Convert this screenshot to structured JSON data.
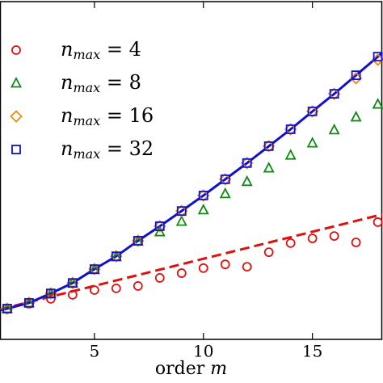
{
  "chart_data": {
    "type": "scatter",
    "x_label": "order m",
    "xlim": [
      0.67,
      18.2
    ],
    "ylim": [
      0,
      100
    ],
    "xticks": [
      5,
      10,
      15
    ],
    "series": [
      {
        "name": "nmax = 4",
        "color": "#dd1111",
        "marker": "circle",
        "x": [
          1,
          2,
          3,
          4,
          5,
          6,
          7,
          8,
          9,
          10,
          11,
          12,
          13,
          14,
          15,
          16,
          17,
          18
        ],
        "values": [
          9.1,
          10.5,
          12.0,
          13.2,
          14.6,
          15.1,
          15.8,
          18.2,
          19.6,
          21.1,
          22.2,
          21.5,
          25.8,
          28.5,
          29.9,
          30.6,
          28.7,
          34.7
        ]
      },
      {
        "name": "nmax = 8",
        "color": "#118811",
        "marker": "triangle",
        "x": [
          1,
          2,
          3,
          4,
          5,
          6,
          7,
          8,
          9,
          10,
          11,
          12,
          13,
          14,
          15,
          16,
          17,
          18
        ],
        "values": [
          9.1,
          10.8,
          13.4,
          16.7,
          20.6,
          24.4,
          29.0,
          31.8,
          34.9,
          38.3,
          43.1,
          46.7,
          50.7,
          54.5,
          58.1,
          62.0,
          65.8,
          69.6
        ]
      },
      {
        "name": "nmax = 16",
        "color": "#ee8811",
        "marker": "diamond",
        "x": [
          1,
          2,
          3,
          4,
          5,
          6,
          7,
          8,
          9,
          10,
          11,
          12,
          13,
          14,
          15,
          16,
          17,
          18
        ],
        "values": [
          9.1,
          10.8,
          13.6,
          16.7,
          20.8,
          24.6,
          29.2,
          33.5,
          38.0,
          42.6,
          47.4,
          52.2,
          57.2,
          62.2,
          67.5,
          72.7,
          77.3,
          82.8
        ]
      },
      {
        "name": "nmax = 32",
        "color": "#1111cc",
        "marker": "square",
        "x": [
          1,
          2,
          3,
          4,
          5,
          6,
          7,
          8,
          9,
          10,
          11,
          12,
          13,
          14,
          15,
          16,
          17,
          18
        ],
        "values": [
          9.1,
          10.8,
          13.6,
          16.7,
          20.8,
          24.6,
          29.2,
          33.5,
          38.0,
          42.6,
          47.4,
          52.2,
          57.2,
          62.2,
          67.5,
          72.7,
          78.2,
          83.7
        ]
      }
    ],
    "lines": [
      {
        "color": "#dd1111",
        "style": "dashed",
        "x": [
          0.67,
          18.2
        ],
        "values": [
          8.9,
          37.0
        ]
      },
      {
        "color": "#1111cc",
        "style": "solid",
        "x": [
          0.67,
          1,
          2,
          3,
          4,
          5,
          6,
          7,
          8,
          9,
          10,
          11,
          12,
          13,
          14,
          15,
          16,
          17,
          18,
          18.2
        ],
        "values": [
          8.6,
          9.1,
          10.8,
          13.6,
          16.7,
          20.8,
          24.6,
          29.2,
          33.5,
          38.0,
          42.6,
          47.4,
          52.2,
          57.2,
          62.2,
          67.5,
          72.7,
          78.2,
          83.7,
          84.8
        ]
      }
    ]
  }
}
